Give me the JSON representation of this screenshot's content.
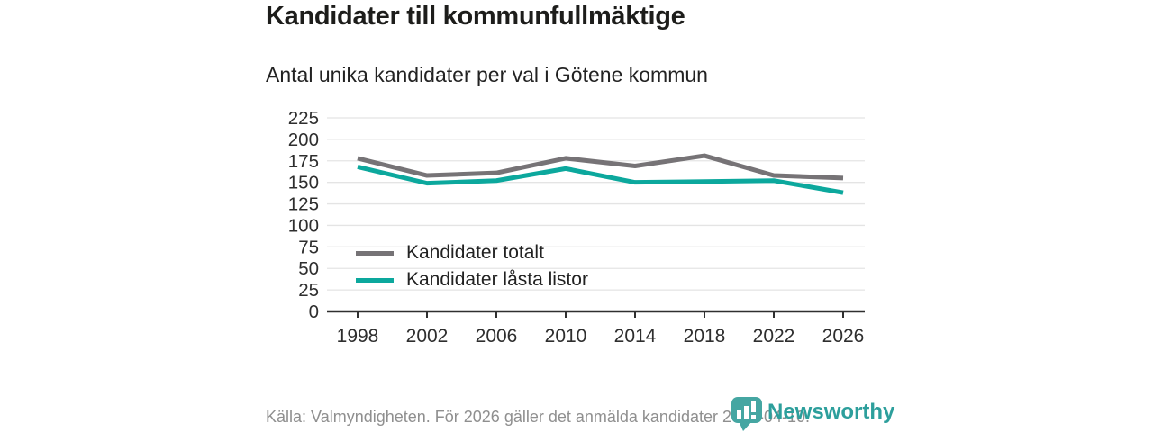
{
  "header": {
    "title": "Kandidater till kommunfullmäktige",
    "subtitle": "Antal unika kandidater per val i Götene kommun"
  },
  "chart_data": {
    "type": "line",
    "title": "Kandidater till kommunfullmäktige",
    "subtitle": "Antal unika kandidater per val i Götene kommun",
    "x": [
      "1998",
      "2002",
      "2006",
      "2010",
      "2014",
      "2018",
      "2022",
      "2026"
    ],
    "series": [
      {
        "name": "Kandidater totalt",
        "color": "#767376",
        "values": [
          178,
          158,
          161,
          178,
          169,
          181,
          158,
          155
        ]
      },
      {
        "name": "Kandidater låsta listor",
        "color": "#0ca89d",
        "values": [
          168,
          149,
          152,
          166,
          150,
          151,
          152,
          138
        ]
      }
    ],
    "ylim": [
      0,
      225
    ],
    "ytick_step": 25,
    "ytick_labels": [
      "0",
      "25",
      "50",
      "75",
      "100",
      "125",
      "150",
      "175",
      "200",
      "225"
    ],
    "grid": true,
    "grid_color": "#e4e4e4",
    "axis_color": "#2f2f2f",
    "tick_label_color": "#2e2e2e",
    "legend_position": "inside-bottom-left",
    "xlabel": "",
    "ylabel": ""
  },
  "footer": {
    "source": "Källa: Valmyndigheten. För 2026 gäller det anmälda kandidater 2026-04-10."
  },
  "logo": {
    "text": "Newsworthy",
    "icon": "bar-chart-pin-icon",
    "badge_color": "#45a6a2",
    "text_color": "#2d9f9c"
  }
}
